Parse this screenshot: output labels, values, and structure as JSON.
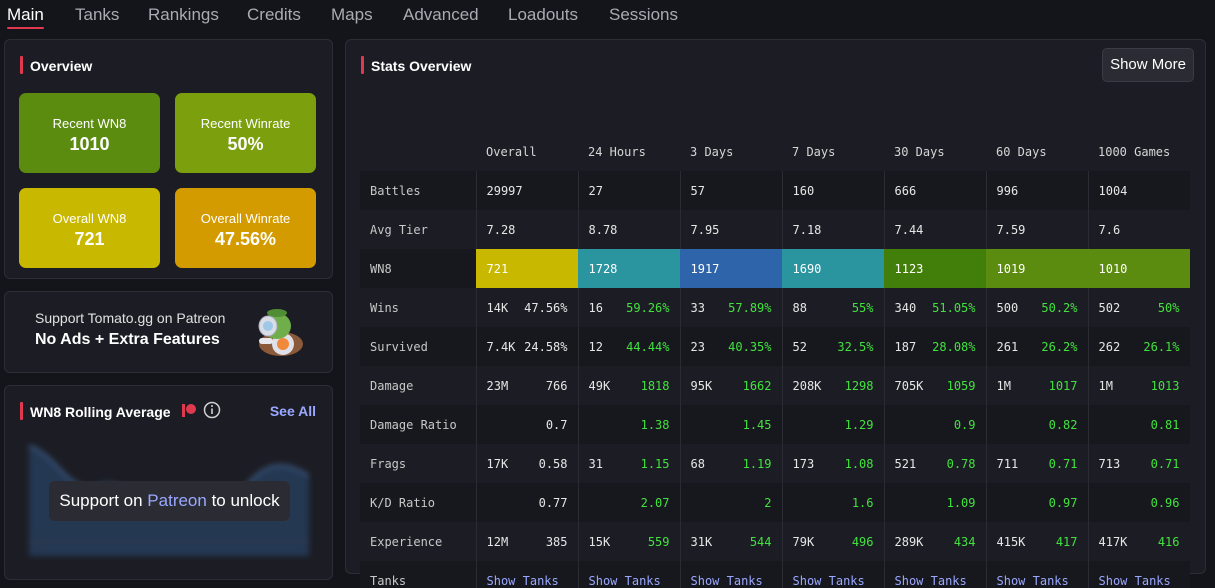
{
  "nav": {
    "tabs": [
      "Main",
      "Tanks",
      "Rankings",
      "Credits",
      "Maps",
      "Advanced",
      "Loadouts",
      "Sessions"
    ],
    "active": "Main"
  },
  "overview": {
    "title": "Overview",
    "cards": [
      {
        "label": "Recent WN8",
        "value": "1010",
        "color": "#5b8c10"
      },
      {
        "label": "Recent Winrate",
        "value": "50%",
        "color": "#7c9f0e"
      },
      {
        "label": "Overall WN8",
        "value": "721",
        "color": "#c9b800"
      },
      {
        "label": "Overall Winrate",
        "value": "47.56%",
        "color": "#d49b00"
      }
    ]
  },
  "patreon": {
    "line1": "Support Tomato.gg on Patreon",
    "line2": "No Ads + Extra Features"
  },
  "rolling": {
    "title": "WN8 Rolling Average",
    "see_all": "See All",
    "unlock_prefix": "Support on ",
    "unlock_link": "Patreon",
    "unlock_suffix": " to unlock"
  },
  "stats": {
    "title": "Stats Overview",
    "show_more": "Show More",
    "columns": [
      "Overall",
      "24 Hours",
      "3 Days",
      "7 Days",
      "30 Days",
      "60 Days",
      "1000 Games"
    ],
    "rows": [
      {
        "label": "Battles",
        "type": "single",
        "cells": [
          "29997",
          "27",
          "57",
          "160",
          "666",
          "996",
          "1004"
        ]
      },
      {
        "label": "Avg Tier",
        "type": "single",
        "cells": [
          "7.28",
          "8.78",
          "7.95",
          "7.18",
          "7.44",
          "7.59",
          "7.6"
        ]
      },
      {
        "label": "WN8",
        "type": "wn8",
        "cells": [
          "721",
          "1728",
          "1917",
          "1690",
          "1123",
          "1019",
          "1010"
        ],
        "colors": [
          "#c9b800",
          "#2a959f",
          "#2e64a9",
          "#2a959f",
          "#427e0a",
          "#5b8c10",
          "#5b8c10"
        ]
      },
      {
        "label": "Wins",
        "type": "pair",
        "cells": [
          [
            "14K",
            "47.56%"
          ],
          [
            "16",
            "59.26%"
          ],
          [
            "33",
            "57.89%"
          ],
          [
            "88",
            "55%"
          ],
          [
            "340",
            "51.05%"
          ],
          [
            "500",
            "50.2%"
          ],
          [
            "502",
            "50%"
          ]
        ]
      },
      {
        "label": "Survived",
        "type": "pair",
        "cells": [
          [
            "7.4K",
            "24.58%"
          ],
          [
            "12",
            "44.44%"
          ],
          [
            "23",
            "40.35%"
          ],
          [
            "52",
            "32.5%"
          ],
          [
            "187",
            "28.08%"
          ],
          [
            "261",
            "26.2%"
          ],
          [
            "262",
            "26.1%"
          ]
        ]
      },
      {
        "label": "Damage",
        "type": "pair",
        "cells": [
          [
            "23M",
            "766"
          ],
          [
            "49K",
            "1818"
          ],
          [
            "95K",
            "1662"
          ],
          [
            "208K",
            "1298"
          ],
          [
            "705K",
            "1059"
          ],
          [
            "1M",
            "1017"
          ],
          [
            "1M",
            "1013"
          ]
        ]
      },
      {
        "label": "Damage Ratio",
        "type": "right",
        "cells": [
          "0.7",
          "1.38",
          "1.45",
          "1.29",
          "0.9",
          "0.82",
          "0.81"
        ]
      },
      {
        "label": "Frags",
        "type": "pair",
        "cells": [
          [
            "17K",
            "0.58"
          ],
          [
            "31",
            "1.15"
          ],
          [
            "68",
            "1.19"
          ],
          [
            "173",
            "1.08"
          ],
          [
            "521",
            "0.78"
          ],
          [
            "711",
            "0.71"
          ],
          [
            "713",
            "0.71"
          ]
        ]
      },
      {
        "label": "K/D Ratio",
        "type": "right",
        "cells": [
          "0.77",
          "2.07",
          "2",
          "1.6",
          "1.09",
          "0.97",
          "0.96"
        ]
      },
      {
        "label": "Experience",
        "type": "pair",
        "cells": [
          [
            "12M",
            "385"
          ],
          [
            "15K",
            "559"
          ],
          [
            "31K",
            "544"
          ],
          [
            "79K",
            "496"
          ],
          [
            "289K",
            "434"
          ],
          [
            "415K",
            "417"
          ],
          [
            "417K",
            "416"
          ]
        ]
      },
      {
        "label": "Tanks",
        "type": "link",
        "cells": [
          "Show Tanks",
          "Show Tanks",
          "Show Tanks",
          "Show Tanks",
          "Show Tanks",
          "Show Tanks",
          "Show Tanks"
        ]
      }
    ]
  }
}
